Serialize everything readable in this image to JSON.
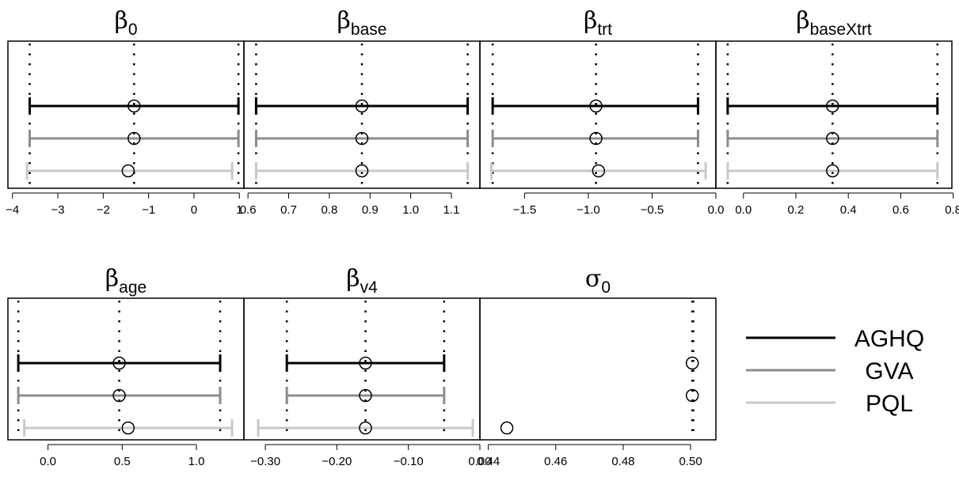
{
  "chart_data": {
    "type": "interval-comparison",
    "methods": [
      {
        "name": "AGHQ",
        "color": "#000000",
        "width": 3
      },
      {
        "name": "GVA",
        "color": "#8c8c8c",
        "width": 3
      },
      {
        "name": "PQL",
        "color": "#c8c8c8",
        "width": 3
      }
    ],
    "legend_position": "bottom-right",
    "panels": [
      {
        "title_main": "β",
        "title_sub": "0",
        "xlim": [
          -4.1,
          1.1
        ],
        "ticks": [
          -4,
          -3,
          -2,
          -1,
          0,
          1
        ],
        "tick_labels": [
          "−4",
          "−3",
          "−2",
          "−1",
          "0",
          "1"
        ],
        "intervals": [
          {
            "method": "AGHQ",
            "lower": -3.62,
            "estimate": -1.32,
            "upper": 0.98
          },
          {
            "method": "GVA",
            "lower": -3.62,
            "estimate": -1.32,
            "upper": 0.98
          },
          {
            "method": "PQL",
            "lower": -3.68,
            "estimate": -1.45,
            "upper": 0.84
          }
        ],
        "reference_lines": [
          -3.62,
          -1.32,
          0.98
        ]
      },
      {
        "title_main": "β",
        "title_sub": "base",
        "xlim": [
          0.59,
          1.17
        ],
        "ticks": [
          0.6,
          0.7,
          0.8,
          0.9,
          1.0,
          1.1
        ],
        "tick_labels": [
          "0.6",
          "0.7",
          "0.8",
          "0.9",
          "1.0",
          "1.1"
        ],
        "intervals": [
          {
            "method": "AGHQ",
            "lower": 0.62,
            "estimate": 0.88,
            "upper": 1.14
          },
          {
            "method": "GVA",
            "lower": 0.62,
            "estimate": 0.88,
            "upper": 1.14
          },
          {
            "method": "PQL",
            "lower": 0.62,
            "estimate": 0.88,
            "upper": 1.14
          }
        ],
        "reference_lines": [
          0.62,
          0.88,
          1.14
        ]
      },
      {
        "title_main": "β",
        "title_sub": "trt",
        "xlim": [
          -1.85,
          0.0
        ],
        "ticks": [
          -1.5,
          -1.0,
          -0.5,
          0.0
        ],
        "tick_labels": [
          "−1.5",
          "−1.0",
          "−0.5",
          "0.0"
        ],
        "intervals": [
          {
            "method": "AGHQ",
            "lower": -1.75,
            "estimate": -0.94,
            "upper": -0.14
          },
          {
            "method": "GVA",
            "lower": -1.75,
            "estimate": -0.94,
            "upper": -0.14
          },
          {
            "method": "PQL",
            "lower": -1.76,
            "estimate": -0.92,
            "upper": -0.08
          }
        ],
        "reference_lines": [
          -1.75,
          -0.94,
          -0.14
        ]
      },
      {
        "title_main": "β",
        "title_sub": "baseXtrt",
        "xlim": [
          -0.105,
          0.795
        ],
        "ticks": [
          0.0,
          0.2,
          0.4,
          0.6,
          0.8
        ],
        "tick_labels": [
          "0.0",
          "0.2",
          "0.4",
          "0.6",
          "0.8"
        ],
        "intervals": [
          {
            "method": "AGHQ",
            "lower": -0.06,
            "estimate": 0.34,
            "upper": 0.74
          },
          {
            "method": "GVA",
            "lower": -0.06,
            "estimate": 0.34,
            "upper": 0.74
          },
          {
            "method": "PQL",
            "lower": -0.06,
            "estimate": 0.34,
            "upper": 0.74
          }
        ],
        "reference_lines": [
          -0.06,
          0.34,
          0.74
        ]
      },
      {
        "title_main": "β",
        "title_sub": "age",
        "xlim": [
          -0.27,
          1.32
        ],
        "ticks": [
          0.0,
          0.5,
          1.0
        ],
        "tick_labels": [
          "0.0",
          "0.5",
          "1.0"
        ],
        "intervals": [
          {
            "method": "AGHQ",
            "lower": -0.2,
            "estimate": 0.48,
            "upper": 1.16
          },
          {
            "method": "GVA",
            "lower": -0.2,
            "estimate": 0.48,
            "upper": 1.16
          },
          {
            "method": "PQL",
            "lower": -0.16,
            "estimate": 0.54,
            "upper": 1.24
          }
        ],
        "reference_lines": [
          -0.2,
          0.48,
          1.16
        ]
      },
      {
        "title_main": "β",
        "title_sub": "v4",
        "xlim": [
          -0.33,
          0.0
        ],
        "ticks": [
          -0.3,
          -0.2,
          -0.1,
          0.0
        ],
        "tick_labels": [
          "−0.30",
          "−0.20",
          "−0.10",
          "0.00"
        ],
        "intervals": [
          {
            "method": "AGHQ",
            "lower": -0.27,
            "estimate": -0.16,
            "upper": -0.05
          },
          {
            "method": "GVA",
            "lower": -0.27,
            "estimate": -0.16,
            "upper": -0.05
          },
          {
            "method": "PQL",
            "lower": -0.31,
            "estimate": -0.16,
            "upper": -0.01
          }
        ],
        "reference_lines": [
          -0.27,
          -0.16,
          -0.05
        ]
      },
      {
        "title_main": "σ",
        "title_sub": "0",
        "xlim": [
          0.4375,
          0.5075
        ],
        "ticks": [
          0.44,
          0.46,
          0.48,
          0.5
        ],
        "tick_labels": [
          "0.44",
          "0.46",
          "0.48",
          "0.50"
        ],
        "intervals": [
          {
            "method": "AGHQ",
            "lower": 0.5005,
            "estimate": 0.5005,
            "upper": 0.5005
          },
          {
            "method": "GVA",
            "lower": 0.5005,
            "estimate": 0.5005,
            "upper": 0.5005
          },
          {
            "method": "PQL",
            "lower": 0.4455,
            "estimate": 0.4455,
            "upper": 0.4455
          }
        ],
        "reference_lines": [
          0.5005,
          0.5008
        ]
      }
    ]
  }
}
